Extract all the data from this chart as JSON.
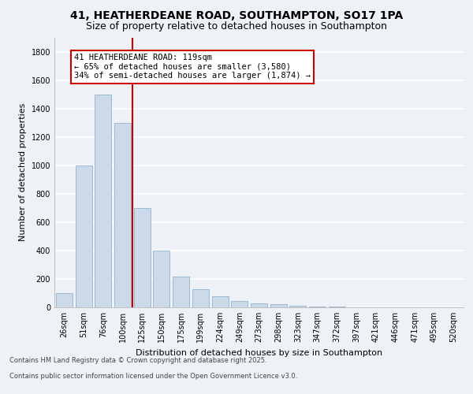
{
  "title_line1": "41, HEATHERDEANE ROAD, SOUTHAMPTON, SO17 1PA",
  "title_line2": "Size of property relative to detached houses in Southampton",
  "xlabel": "Distribution of detached houses by size in Southampton",
  "ylabel": "Number of detached properties",
  "categories": [
    "26sqm",
    "51sqm",
    "76sqm",
    "100sqm",
    "125sqm",
    "150sqm",
    "175sqm",
    "199sqm",
    "224sqm",
    "249sqm",
    "273sqm",
    "298sqm",
    "323sqm",
    "347sqm",
    "372sqm",
    "397sqm",
    "421sqm",
    "446sqm",
    "471sqm",
    "495sqm",
    "520sqm"
  ],
  "values": [
    100,
    1000,
    1500,
    1300,
    700,
    400,
    215,
    130,
    75,
    45,
    30,
    20,
    10,
    5,
    3,
    2,
    1,
    1,
    0,
    0,
    0
  ],
  "bar_color": "#ccd9e8",
  "bar_edge_color": "#7fa8c8",
  "vline_color": "#cc0000",
  "vline_x_bar_index": 3,
  "annotation_text": "41 HEATHERDEANE ROAD: 119sqm\n← 65% of detached houses are smaller (3,580)\n34% of semi-detached houses are larger (1,874) →",
  "annotation_box_color": "#ffffff",
  "annotation_edge_color": "#cc0000",
  "ylim": [
    0,
    1900
  ],
  "yticks": [
    0,
    200,
    400,
    600,
    800,
    1000,
    1200,
    1400,
    1600,
    1800
  ],
  "footer_line1": "Contains HM Land Registry data © Crown copyright and database right 2025.",
  "footer_line2": "Contains public sector information licensed under the Open Government Licence v3.0.",
  "bg_color": "#eef2f7",
  "plot_bg_color": "#eef2f7",
  "grid_color": "#ffffff",
  "title1_fontsize": 10,
  "title2_fontsize": 9,
  "ylabel_fontsize": 8,
  "xlabel_fontsize": 8,
  "tick_fontsize": 7,
  "annot_fontsize": 7.5
}
